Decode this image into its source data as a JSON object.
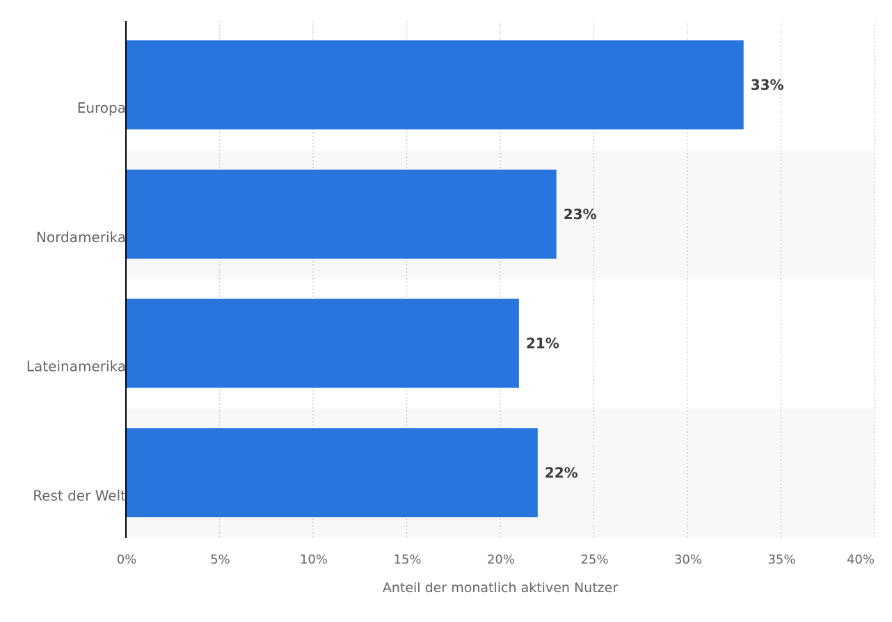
{
  "chart_data": {
    "type": "bar",
    "orientation": "horizontal",
    "categories": [
      "Europa",
      "Nordamerika",
      "Lateinamerika",
      "Rest der Welt"
    ],
    "values": [
      33,
      23,
      21,
      22
    ],
    "data_labels": [
      "33%",
      "23%",
      "21%",
      "22%"
    ],
    "title": "",
    "xlabel": "Anteil der monatlich aktiven Nutzer",
    "ylabel": "",
    "xlim": [
      0,
      40
    ],
    "x_ticks": [
      0,
      5,
      10,
      15,
      20,
      25,
      30,
      35,
      40
    ],
    "x_tick_labels": [
      "0%",
      "5%",
      "10%",
      "15%",
      "20%",
      "25%",
      "30%",
      "35%",
      "40%"
    ],
    "grid": true,
    "legend": "none",
    "bar_color": "#2875dd",
    "band_color": "#f8f8f8"
  }
}
